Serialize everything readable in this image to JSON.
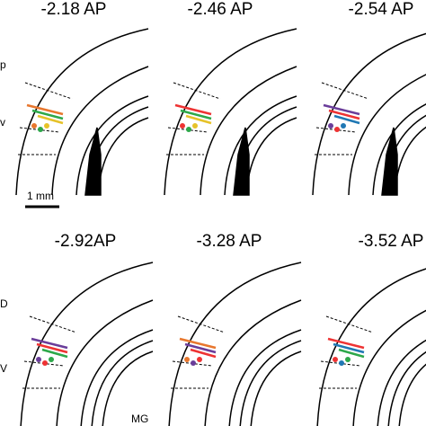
{
  "panels": [
    {
      "title": "-2.18 AP",
      "labels": [
        "p",
        "v"
      ],
      "scale": "1 mm"
    },
    {
      "title": "-2.46 AP"
    },
    {
      "title": "-2.54 AP"
    },
    {
      "title": "-2.92AP",
      "labels": [
        "D",
        "V"
      ],
      "region": "MG"
    },
    {
      "title": "-3.28 AP"
    },
    {
      "title": "-3.52 AP"
    }
  ]
}
